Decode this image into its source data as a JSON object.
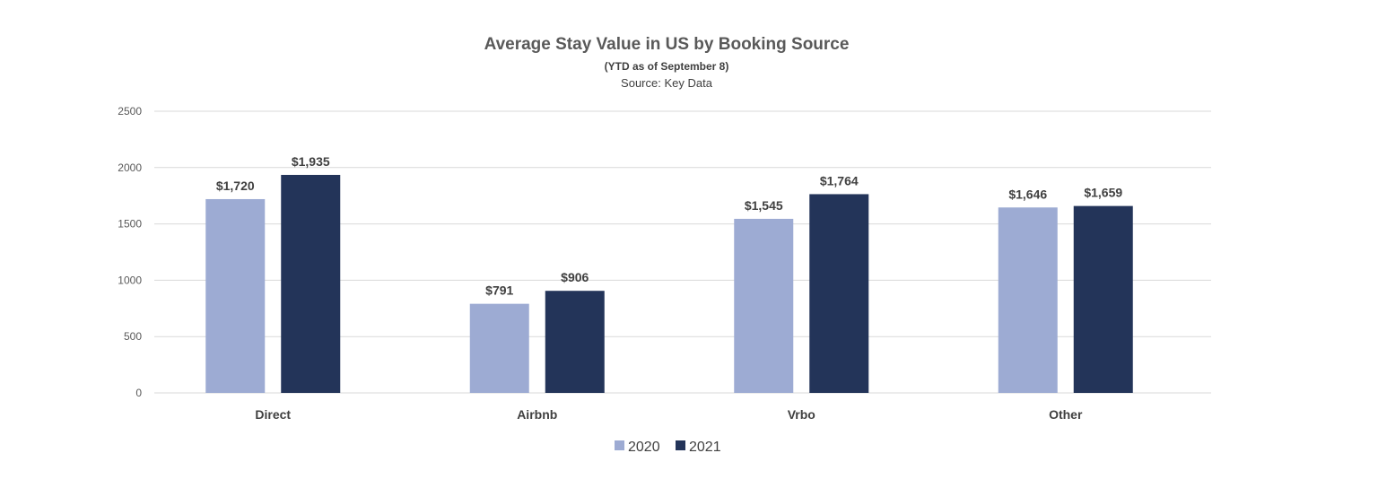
{
  "chart_data": {
    "type": "bar",
    "title": "Average Stay Value in US by Booking Source",
    "subtitle": "(YTD as of September 8)",
    "source": "Source: Key Data",
    "xlabel": "",
    "ylabel": "",
    "categories": [
      "Direct",
      "Airbnb",
      "Vrbo",
      "Other"
    ],
    "series": [
      {
        "name": "2020",
        "color": "#9dabd3",
        "values": [
          1720,
          791,
          1545,
          1646
        ],
        "labels": [
          "$1,720",
          "$791",
          "$1,545",
          "$1,646"
        ]
      },
      {
        "name": "2021",
        "color": "#233459",
        "values": [
          1935,
          906,
          1764,
          1659
        ],
        "labels": [
          "$1,935",
          "$906",
          "$1,764",
          "$1,659"
        ]
      }
    ],
    "ylim": [
      0,
      2500
    ],
    "yticks": [
      0,
      500,
      1000,
      1500,
      2000,
      2500
    ],
    "ytick_labels": [
      "0",
      "500",
      "1000",
      "1500",
      "2000",
      "2500"
    ],
    "grid": true,
    "legend": "bottom-center"
  }
}
